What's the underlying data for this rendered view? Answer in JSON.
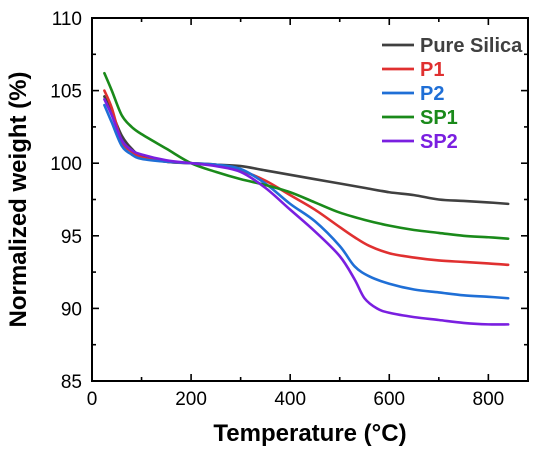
{
  "chart_data": {
    "type": "line",
    "title": "",
    "xlabel": "Temperature (°C)",
    "ylabel": "Normalized weight (%)",
    "xlim": [
      0,
      880
    ],
    "ylim": [
      85,
      110
    ],
    "xticks": [
      "0",
      "200",
      "400",
      "600",
      "800"
    ],
    "yticks": [
      "85",
      "90",
      "95",
      "100",
      "105",
      "110"
    ],
    "grid": false,
    "legend_position": "top-right",
    "series": [
      {
        "name": "Pure Silica",
        "color": "#404040",
        "x": [
          25,
          40,
          60,
          80,
          100,
          150,
          200,
          250,
          300,
          350,
          400,
          450,
          500,
          550,
          600,
          650,
          700,
          750,
          800,
          840
        ],
        "y": [
          104.6,
          103.5,
          101.9,
          101.0,
          100.5,
          100.1,
          100.0,
          99.9,
          99.8,
          99.5,
          99.2,
          98.9,
          98.6,
          98.3,
          98.0,
          97.8,
          97.5,
          97.4,
          97.3,
          97.2
        ]
      },
      {
        "name": "P1",
        "color": "#e03030",
        "x": [
          25,
          40,
          60,
          80,
          100,
          150,
          200,
          250,
          300,
          350,
          400,
          450,
          500,
          530,
          560,
          600,
          650,
          700,
          750,
          800,
          840
        ],
        "y": [
          105.0,
          103.8,
          101.5,
          100.8,
          100.4,
          100.1,
          100.0,
          99.9,
          99.5,
          98.8,
          97.8,
          96.8,
          95.6,
          94.9,
          94.3,
          93.8,
          93.5,
          93.3,
          93.2,
          93.1,
          93.0
        ]
      },
      {
        "name": "P2",
        "color": "#1f6fd6",
        "x": [
          25,
          40,
          60,
          80,
          100,
          150,
          200,
          250,
          300,
          350,
          400,
          450,
          500,
          530,
          560,
          600,
          650,
          700,
          750,
          800,
          840
        ],
        "y": [
          104.0,
          102.8,
          101.2,
          100.6,
          100.3,
          100.1,
          100.0,
          99.9,
          99.6,
          98.6,
          97.2,
          96.0,
          94.3,
          92.9,
          92.2,
          91.7,
          91.3,
          91.1,
          90.9,
          90.8,
          90.7
        ]
      },
      {
        "name": "SP1",
        "color": "#1a8a1a",
        "x": [
          25,
          40,
          60,
          80,
          100,
          150,
          200,
          250,
          300,
          350,
          400,
          450,
          500,
          550,
          600,
          650,
          700,
          750,
          800,
          840
        ],
        "y": [
          106.2,
          105.0,
          103.3,
          102.5,
          102.0,
          101.0,
          100.0,
          99.4,
          98.9,
          98.5,
          98.0,
          97.3,
          96.6,
          96.1,
          95.7,
          95.4,
          95.2,
          95.0,
          94.9,
          94.8
        ]
      },
      {
        "name": "SP2",
        "color": "#7a1fe0",
        "x": [
          25,
          40,
          60,
          80,
          100,
          150,
          200,
          250,
          300,
          350,
          400,
          450,
          500,
          530,
          550,
          575,
          600,
          650,
          700,
          750,
          800,
          840
        ],
        "y": [
          104.4,
          103.3,
          101.6,
          100.9,
          100.6,
          100.2,
          100.0,
          99.8,
          99.4,
          98.3,
          96.8,
          95.3,
          93.6,
          92.0,
          90.7,
          90.0,
          89.7,
          89.4,
          89.2,
          89.0,
          88.9,
          88.9
        ]
      }
    ]
  }
}
